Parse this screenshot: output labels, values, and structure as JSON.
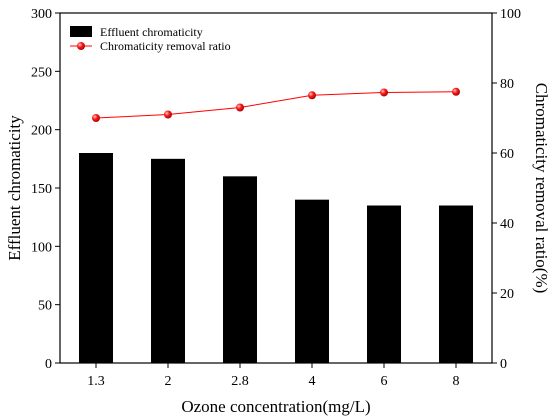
{
  "chart_data": {
    "type": "bar+line",
    "categories": [
      "1.3",
      "2",
      "2.8",
      "4",
      "6",
      "8"
    ],
    "xlabel": "Ozone concentration(mg/L)",
    "ylabel_left": "Effluent chromaticity",
    "ylabel_right": "Chromaticity removal ratio(%)",
    "ylim_left": [
      0,
      300
    ],
    "ylim_right": [
      0,
      100
    ],
    "yticks_left": [
      "0",
      "50",
      "100",
      "150",
      "200",
      "250",
      "300"
    ],
    "yticks_right": [
      "0",
      "20",
      "40",
      "60",
      "80",
      "100"
    ],
    "grid": false,
    "legend_position": "top-left",
    "series": [
      {
        "name": "Effluent chromaticity",
        "type": "bar",
        "axis": "left",
        "color": "#000000",
        "values": [
          180,
          175,
          160,
          140,
          135,
          135
        ]
      },
      {
        "name": "Chromaticity removal ratio",
        "type": "line",
        "axis": "right",
        "color": "#ff0000",
        "values": [
          70,
          71,
          73,
          76.5,
          77.3,
          77.5
        ]
      }
    ]
  }
}
